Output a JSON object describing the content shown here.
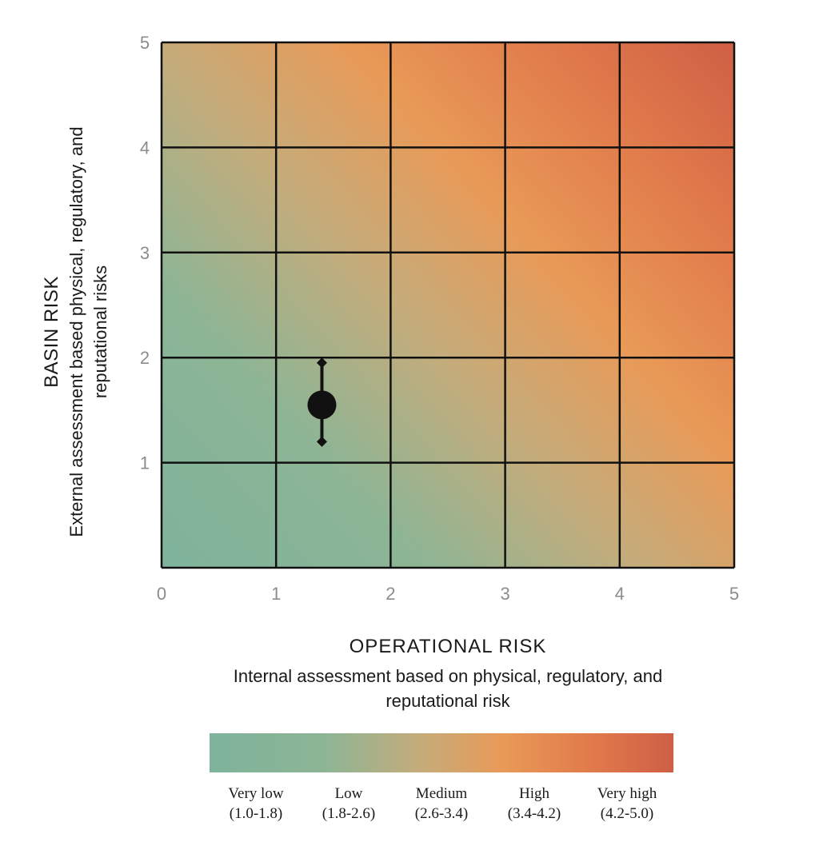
{
  "chart_data": {
    "type": "heatmap",
    "xlabel": "OPERATIONAL RISK",
    "xlabel_sub": "Internal assessment based on physical, regulatory, and reputational risk",
    "ylabel": "BASIN RISK",
    "ylabel_sub_line1": "External assessment  based physical, regulatory, and",
    "ylabel_sub_line2": "reputational risks",
    "xlim": [
      0,
      5
    ],
    "ylim": [
      0,
      5
    ],
    "x_ticks": [
      "0",
      "1",
      "2",
      "3",
      "4",
      "5"
    ],
    "y_ticks": [
      "1",
      "2",
      "3",
      "4",
      "5"
    ],
    "grid": true,
    "color_scale": [
      "#7fb39c",
      "#8db595",
      "#c4ac7b",
      "#e89a58",
      "#e27e4c",
      "#cf5f45"
    ],
    "point": {
      "x": 1.4,
      "y": 1.55,
      "y_low": 1.2,
      "y_high": 1.95
    },
    "legend": [
      {
        "label": "Very low",
        "range": "(1.0-1.8)"
      },
      {
        "label": "Low",
        "range": "(1.8-2.6)"
      },
      {
        "label": "Medium",
        "range": "(2.6-3.4)"
      },
      {
        "label": "High",
        "range": "(3.4-4.2)"
      },
      {
        "label": "Very high",
        "range": "(4.2-5.0)"
      }
    ]
  }
}
